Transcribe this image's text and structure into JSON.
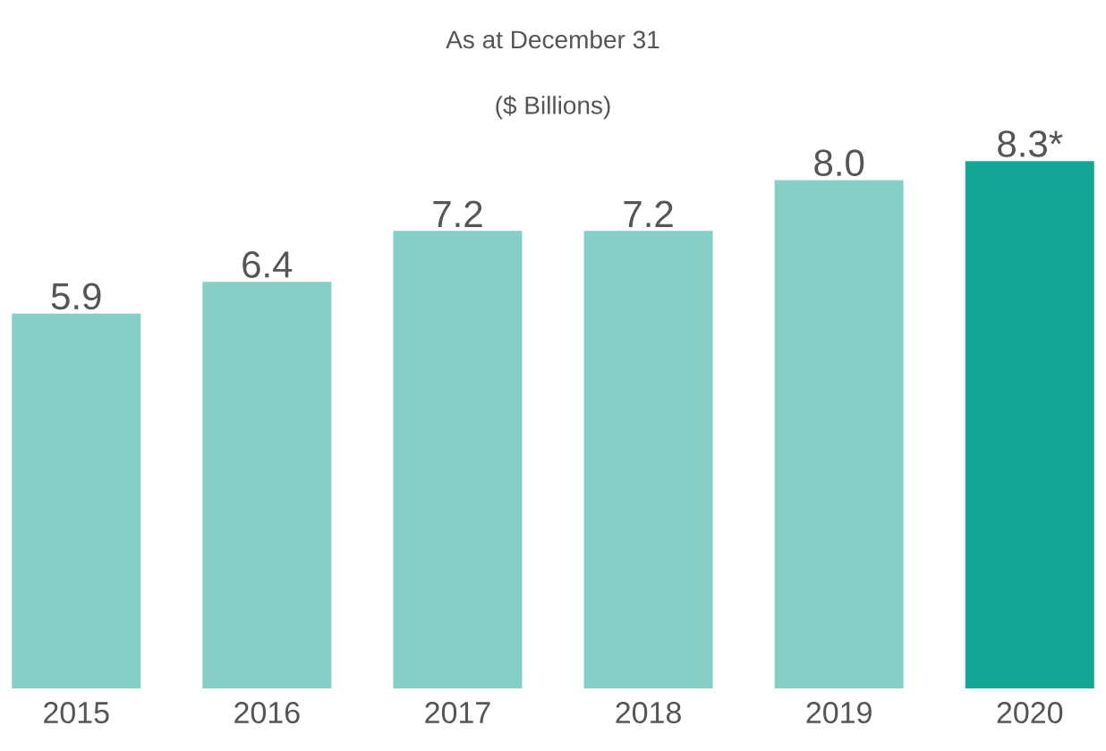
{
  "chart_data": {
    "type": "bar",
    "title": "As at December 31",
    "subtitle": "($ Billions)",
    "categories": [
      "2015",
      "2016",
      "2017",
      "2018",
      "2019",
      "2020"
    ],
    "values": [
      5.9,
      6.4,
      7.2,
      7.2,
      8.0,
      8.3
    ],
    "value_labels": [
      "5.9",
      "6.4",
      "7.2",
      "7.2",
      "8.0",
      "8.3*"
    ],
    "colors": [
      "#85cfc7",
      "#85cfc7",
      "#85cfc7",
      "#85cfc7",
      "#85cfc7",
      "#13a595"
    ],
    "tick_labels": "x"
  }
}
